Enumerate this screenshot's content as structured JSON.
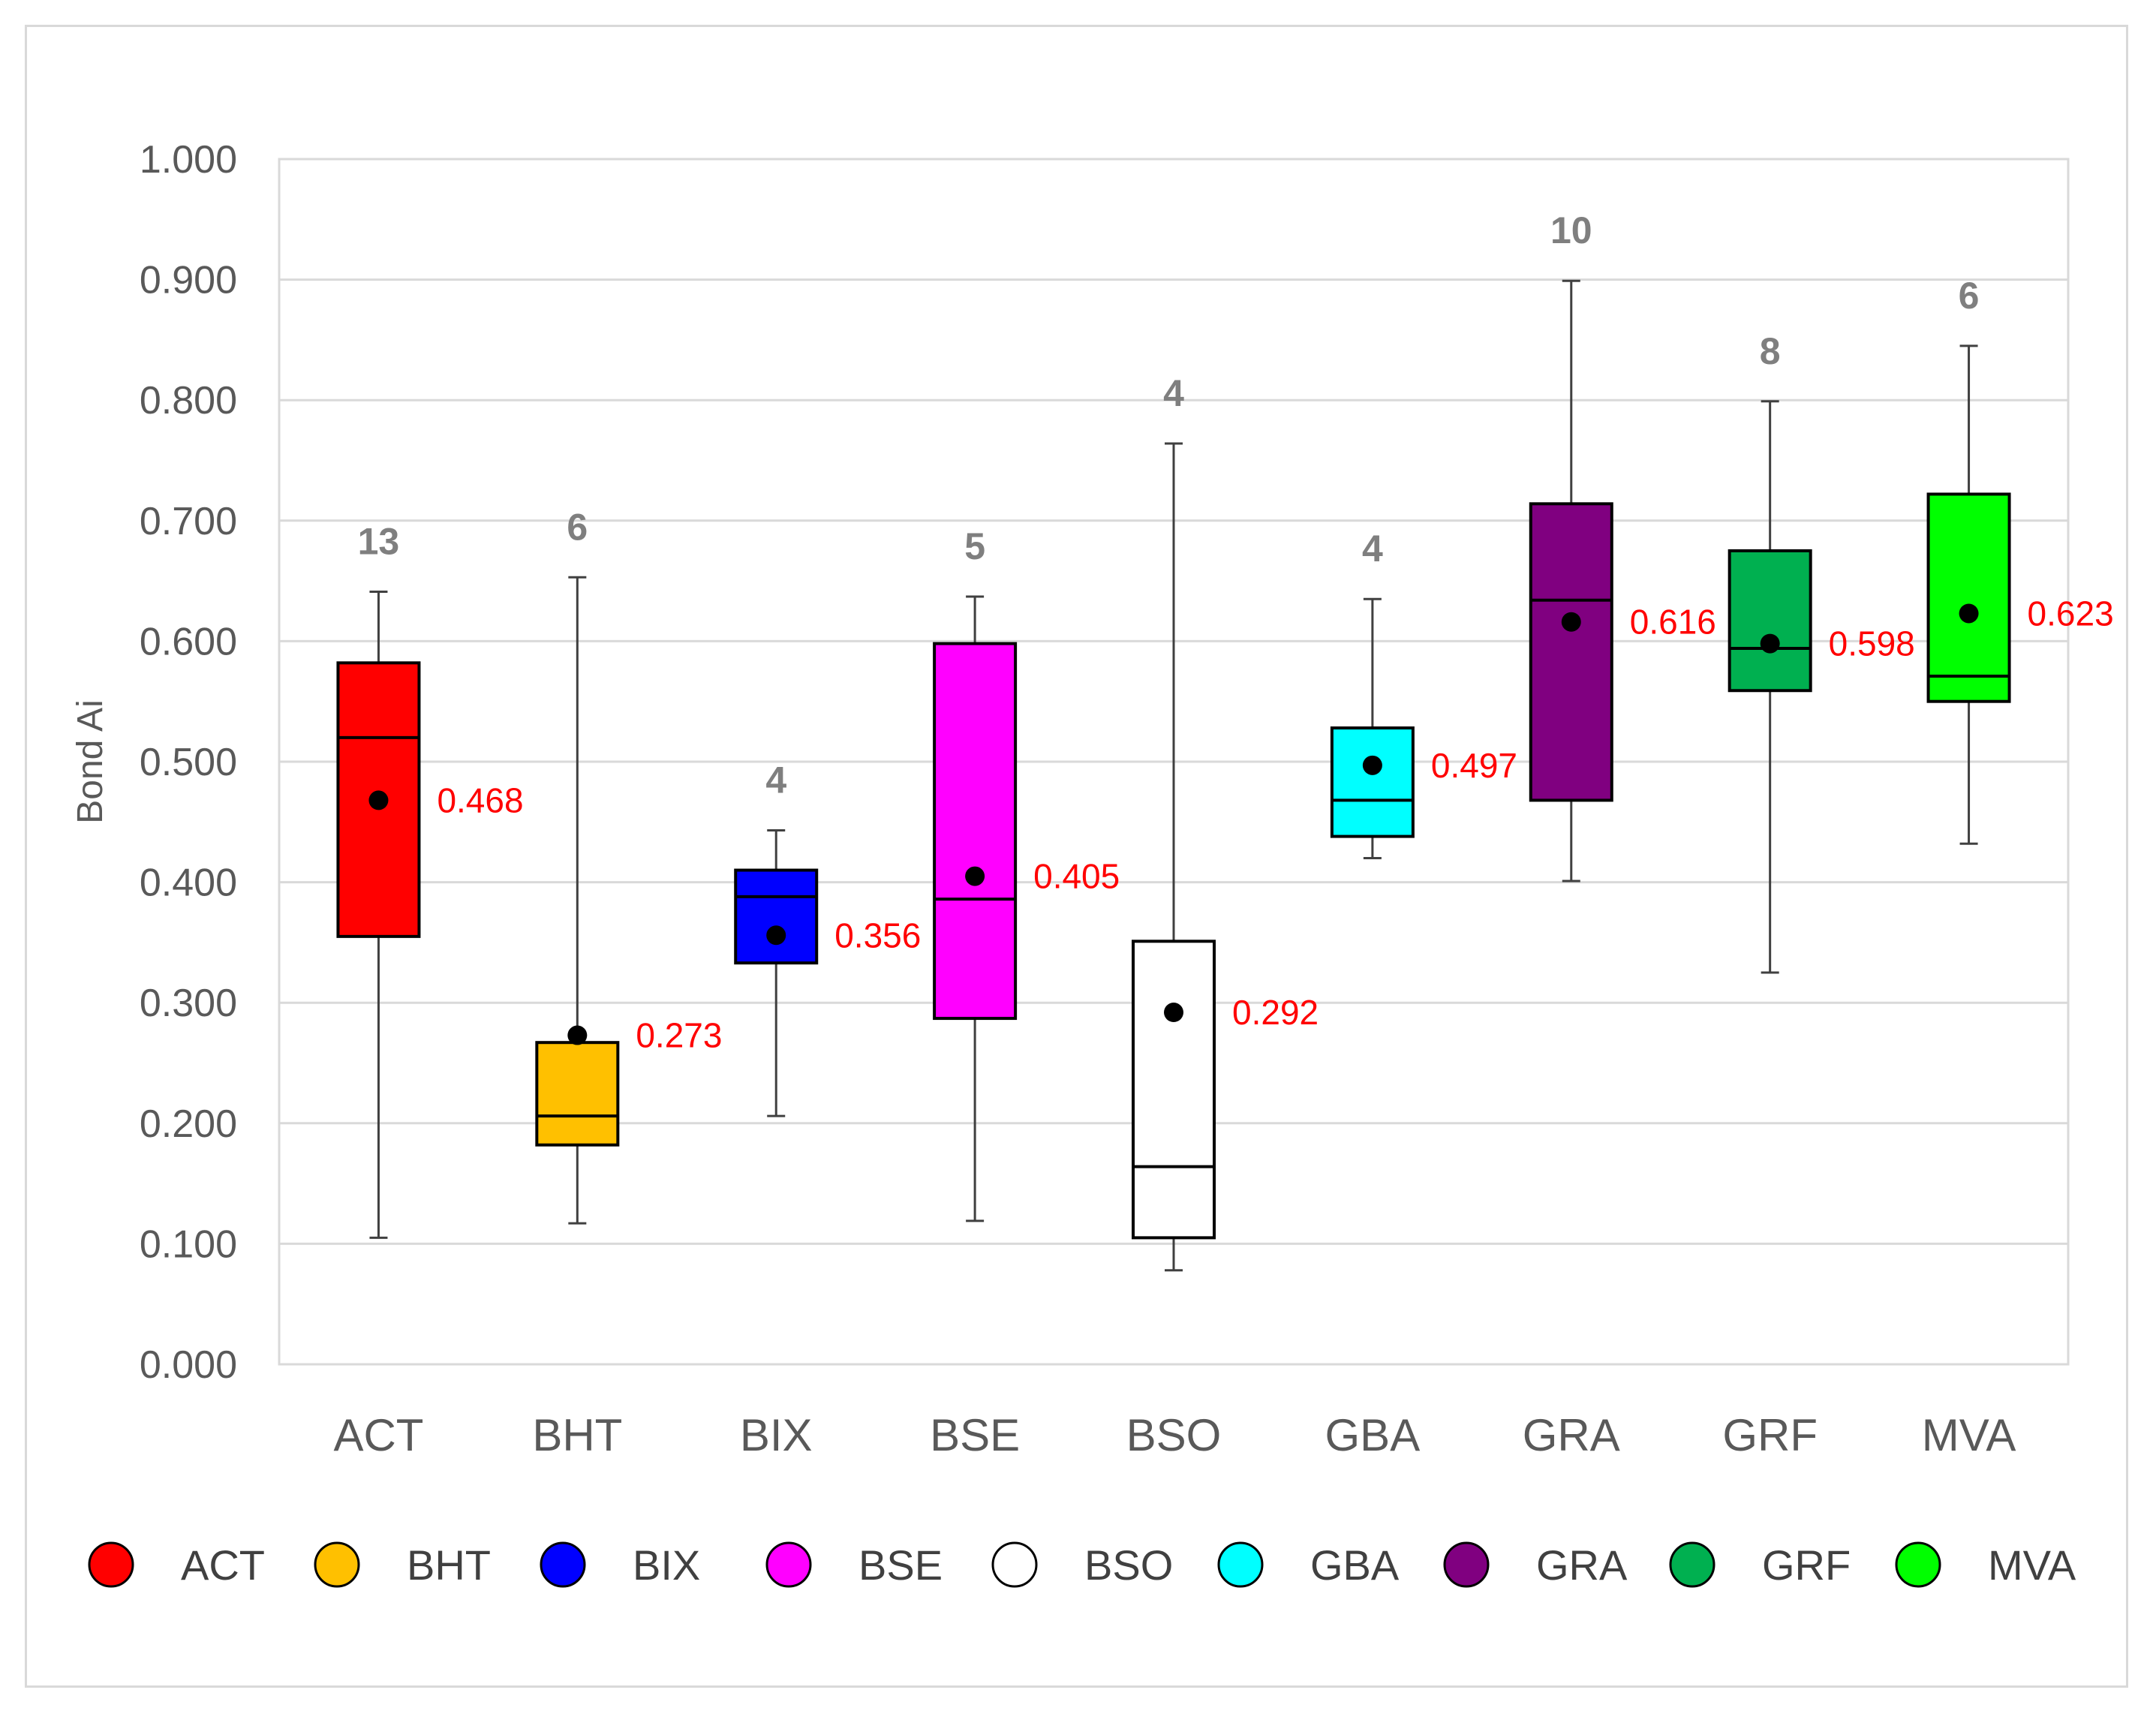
{
  "chart_data": {
    "type": "box",
    "title": "",
    "xlabel": "",
    "ylabel": "Bond Ai",
    "ylim": [
      0,
      1
    ],
    "ytick_labels": [
      "0.000",
      "0.100",
      "0.200",
      "0.300",
      "0.400",
      "0.500",
      "0.600",
      "0.700",
      "0.800",
      "0.900",
      "1.000"
    ],
    "grid": true,
    "legend_position": "bottom",
    "categories": [
      {
        "name": "ACT",
        "color": "#ff0000",
        "n": "13",
        "min": 0.105,
        "q1": 0.355,
        "median": 0.52,
        "q3": 0.582,
        "max": 0.641,
        "mean": 0.468,
        "mean_label": "0.468"
      },
      {
        "name": "BHT",
        "color": "#ffc000",
        "n": "6",
        "min": 0.117,
        "q1": 0.182,
        "median": 0.206,
        "q3": 0.267,
        "max": 0.653,
        "mean": 0.273,
        "mean_label": "0.273"
      },
      {
        "name": "BIX",
        "color": "#0000ff",
        "n": "4",
        "min": 0.206,
        "q1": 0.333,
        "median": 0.388,
        "q3": 0.41,
        "max": 0.443,
        "mean": 0.356,
        "mean_label": "0.356"
      },
      {
        "name": "BSE",
        "color": "#ff00ff",
        "n": "5",
        "min": 0.119,
        "q1": 0.287,
        "median": 0.386,
        "q3": 0.598,
        "max": 0.637,
        "mean": 0.405,
        "mean_label": "0.405"
      },
      {
        "name": "BSO",
        "color": "#ffffff",
        "n": "4",
        "min": 0.078,
        "q1": 0.105,
        "median": 0.164,
        "q3": 0.351,
        "max": 0.764,
        "mean": 0.292,
        "mean_label": "0.292"
      },
      {
        "name": "GBA",
        "color": "#00ffff",
        "n": "4",
        "min": 0.42,
        "q1": 0.438,
        "median": 0.468,
        "q3": 0.528,
        "max": 0.635,
        "mean": 0.497,
        "mean_label": "0.497"
      },
      {
        "name": "GRA",
        "color": "#800080",
        "n": "10",
        "min": 0.401,
        "q1": 0.468,
        "median": 0.634,
        "q3": 0.714,
        "max": 0.899,
        "mean": 0.616,
        "mean_label": "0.616"
      },
      {
        "name": "GRF",
        "color": "#00b050",
        "n": "8",
        "min": 0.325,
        "q1": 0.559,
        "median": 0.594,
        "q3": 0.675,
        "max": 0.799,
        "mean": 0.598,
        "mean_label": "0.598"
      },
      {
        "name": "MVA",
        "color": "#00ff00",
        "n": "6",
        "min": 0.432,
        "q1": 0.55,
        "median": 0.571,
        "q3": 0.722,
        "max": 0.845,
        "mean": 0.623,
        "mean_label": "0.623"
      }
    ]
  }
}
